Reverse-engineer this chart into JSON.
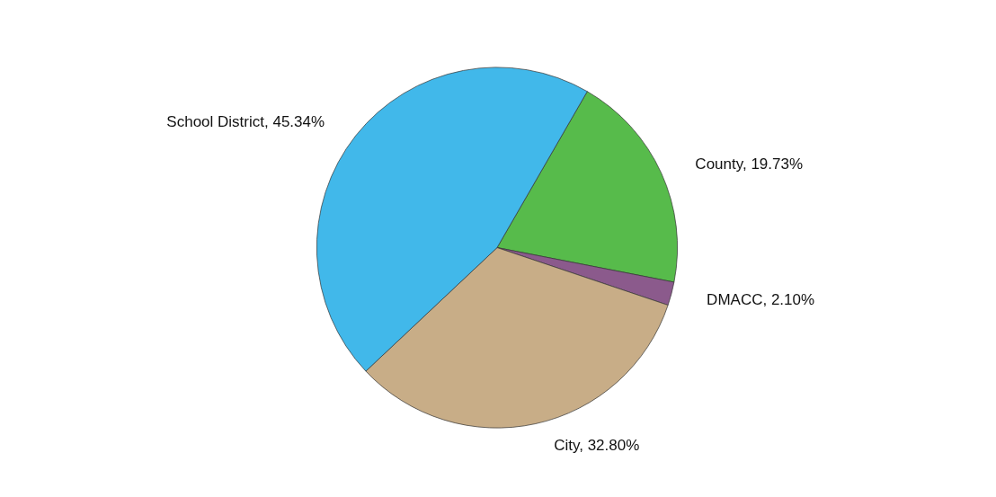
{
  "chart_data": {
    "type": "pie",
    "categories": [
      "County",
      "DMACC",
      "City",
      "School District"
    ],
    "values": [
      19.73,
      2.1,
      32.8,
      45.34
    ],
    "value_labels": [
      "19.73%",
      "2.10%",
      "32.80%",
      "45.34%"
    ],
    "colors": [
      "#57bb4b",
      "#8b5a8c",
      "#c8ad87",
      "#41b8ea"
    ],
    "legend": false
  }
}
